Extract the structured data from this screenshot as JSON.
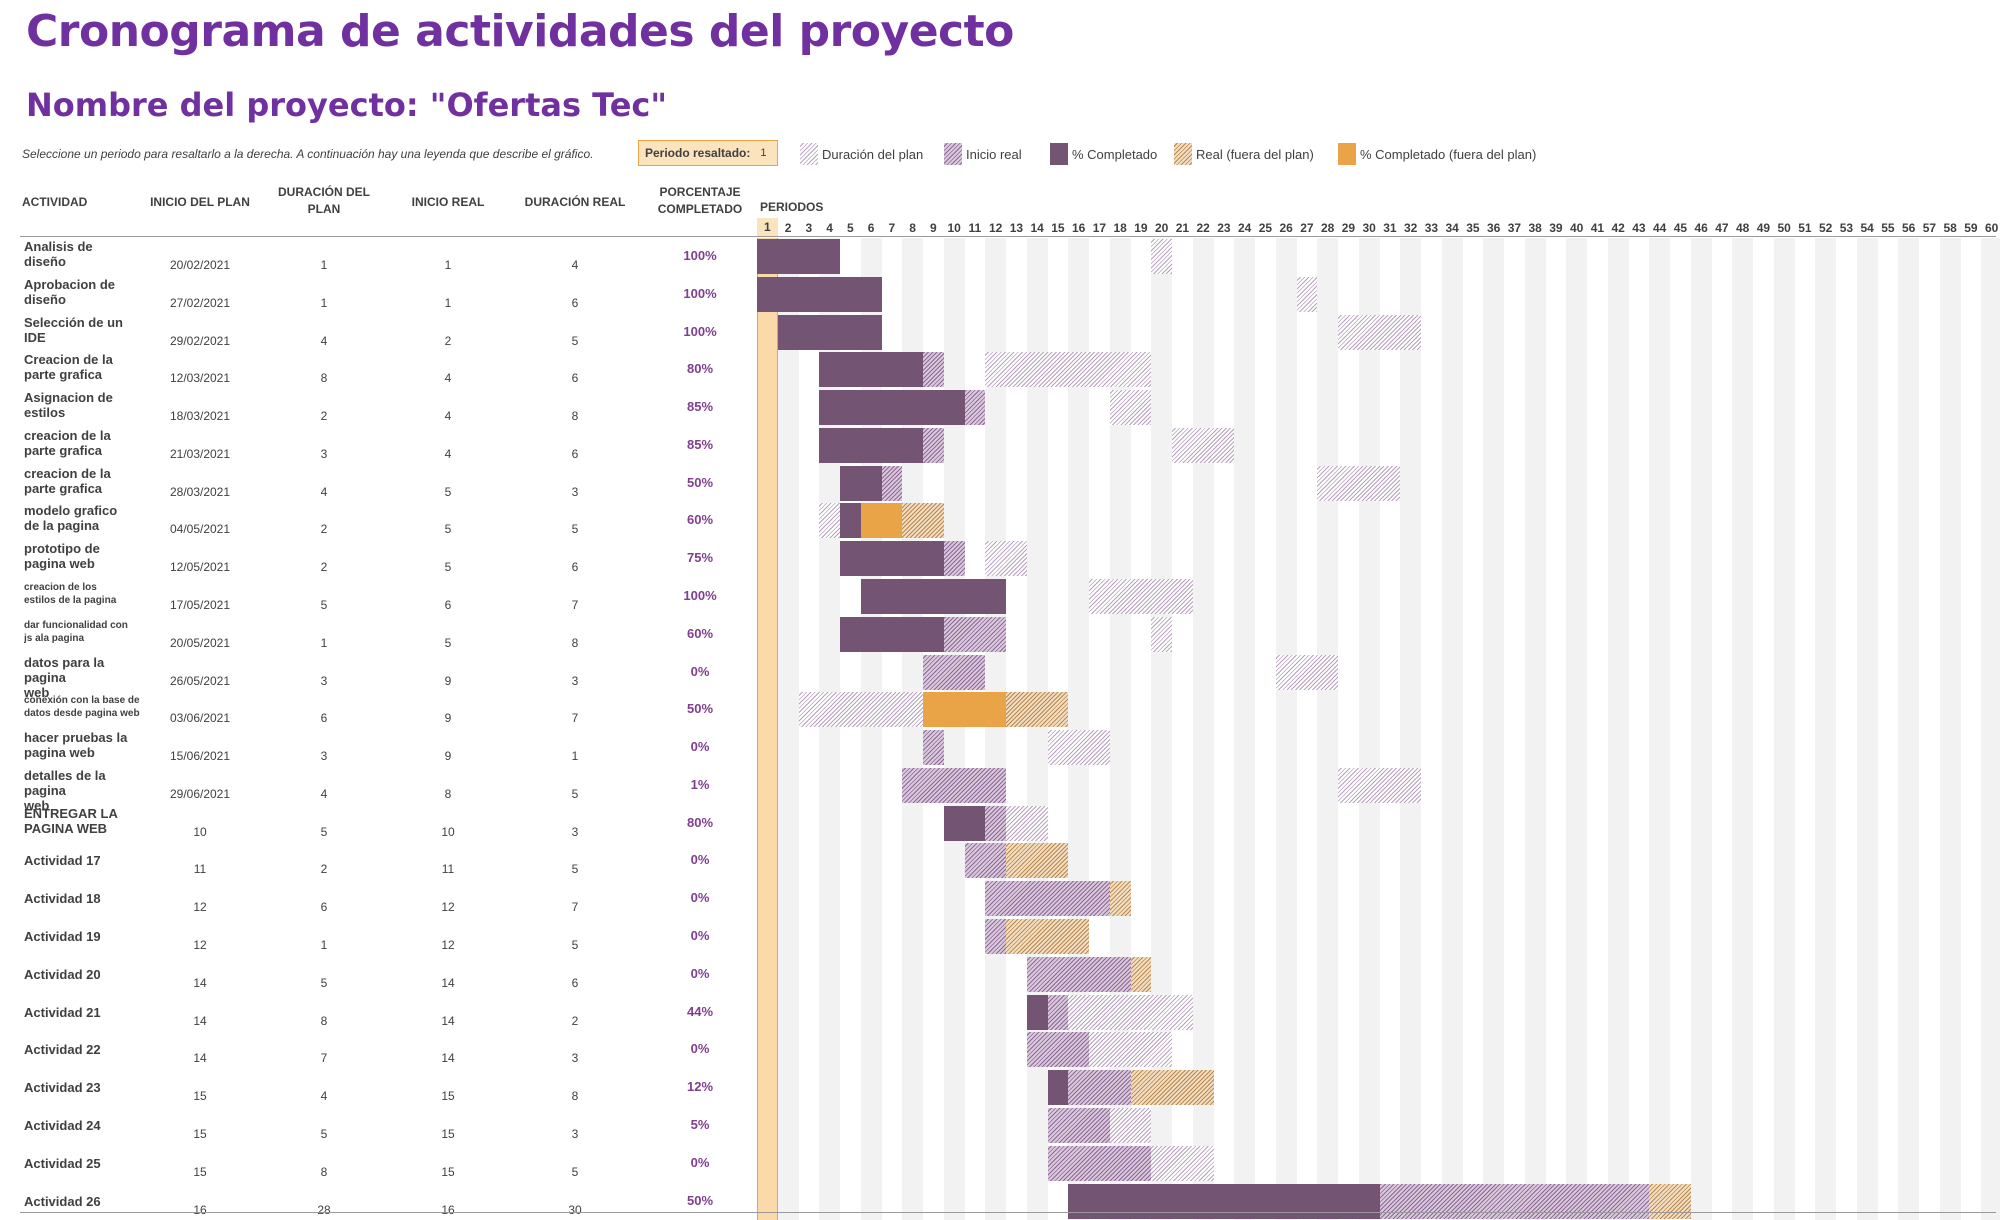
{
  "title": "Cronograma de actividades del proyecto",
  "subtitle": "Nombre del proyecto: \"Ofertas Tec\"",
  "instruction": "Seleccione un periodo para resaltarlo a la derecha.  A continuación hay una leyenda que describe el gráfico.",
  "highlight": {
    "label": "Periodo resaltado:",
    "value": "1"
  },
  "legend": {
    "plan": "Duración del plan",
    "real": "Inicio real",
    "pct": "% Completado",
    "realout": "Real (fuera del plan)",
    "pctout": "% Completado (fuera del plan)"
  },
  "headers": {
    "activity": "ACTIVIDAD",
    "plan_start": "INICIO DEL PLAN",
    "plan_duration_1": "DURACIÓN DEL",
    "plan_duration_2": "PLAN",
    "real_start": "INICIO REAL",
    "real_duration": "DURACIÓN REAL",
    "percent_1": "PORCENTAJE",
    "percent_2": "COMPLETADO",
    "periods": "PERIODOS"
  },
  "colors": {
    "accent": "#7030a0",
    "highlight": "#fbd9a8",
    "percent_complete": "#745473",
    "percent_complete_out": "#e8a446"
  },
  "periods": [
    "1",
    "2",
    "3",
    "4",
    "5",
    "6",
    "7",
    "8",
    "9",
    "10",
    "11",
    "12",
    "13",
    "14",
    "15",
    "16",
    "17",
    "18",
    "19",
    "20",
    "21",
    "22",
    "23",
    "24",
    "25",
    "26",
    "27",
    "28",
    "29",
    "30",
    "31",
    "32",
    "33",
    "34",
    "35",
    "36",
    "37",
    "38",
    "39",
    "40",
    "41",
    "42",
    "43",
    "44",
    "45",
    "46",
    "47",
    "48",
    "49",
    "50",
    "51",
    "52",
    "53",
    "54",
    "55",
    "56",
    "57",
    "58",
    "59",
    "60"
  ],
  "activities": [
    {
      "name_1": "Analisis de",
      "name_2": "diseño",
      "plan_start": "20/02/2021",
      "plan_duration": "1",
      "real_start": "1",
      "real_duration": "4",
      "percent": "100%"
    },
    {
      "name_1": "Aprobacion de",
      "name_2": "diseño",
      "plan_start": "27/02/2021",
      "plan_duration": "1",
      "real_start": "1",
      "real_duration": "6",
      "percent": "100%"
    },
    {
      "name_1": "Selección de un",
      "name_2": "IDE",
      "plan_start": "29/02/2021",
      "plan_duration": "4",
      "real_start": "2",
      "real_duration": "5",
      "percent": "100%"
    },
    {
      "name_1": "Creacion de la",
      "name_2": "parte grafica",
      "plan_start": "12/03/2021",
      "plan_duration": "8",
      "real_start": "4",
      "real_duration": "6",
      "percent": "80%"
    },
    {
      "name_1": "Asignacion de",
      "name_2": "estilos",
      "plan_start": "18/03/2021",
      "plan_duration": "2",
      "real_start": "4",
      "real_duration": "8",
      "percent": "85%"
    },
    {
      "name_1": "creacion de la",
      "name_2": "parte grafica",
      "plan_start": "21/03/2021",
      "plan_duration": "3",
      "real_start": "4",
      "real_duration": "6",
      "percent": "85%"
    },
    {
      "name_1": "creacion de la",
      "name_2": "parte grafica",
      "plan_start": "28/03/2021",
      "plan_duration": "4",
      "real_start": "5",
      "real_duration": "3",
      "percent": "50%"
    },
    {
      "name_1": "modelo grafico",
      "name_2": "de la pagina",
      "plan_start": "04/05/2021",
      "plan_duration": "2",
      "real_start": "5",
      "real_duration": "5",
      "percent": "60%"
    },
    {
      "name_1": "prototipo de",
      "name_2": "pagina web",
      "plan_start": "12/05/2021",
      "plan_duration": "2",
      "real_start": "5",
      "real_duration": "6",
      "percent": "75%"
    },
    {
      "name_1": "creacion de los",
      "name_2": "estilos de la pagina",
      "plan_start": "17/05/2021",
      "plan_duration": "5",
      "real_start": "6",
      "real_duration": "7",
      "percent": "100%"
    },
    {
      "name_1": "dar funcionalidad con",
      "name_2": "js ala pagina",
      "plan_start": "20/05/2021",
      "plan_duration": "1",
      "real_start": "5",
      "real_duration": "8",
      "percent": "60%"
    },
    {
      "name_1": "datos para la pagina",
      "name_2": "web",
      "plan_start": "26/05/2021",
      "plan_duration": "3",
      "real_start": "9",
      "real_duration": "3",
      "percent": "0%"
    },
    {
      "name_1": "conexión con la base de",
      "name_2": "datos desde pagina web",
      "plan_start": "03/06/2021",
      "plan_duration": "6",
      "real_start": "9",
      "real_duration": "7",
      "percent": "50%"
    },
    {
      "name_1": "hacer pruebas la",
      "name_2": "pagina web",
      "plan_start": "15/06/2021",
      "plan_duration": "3",
      "real_start": "9",
      "real_duration": "1",
      "percent": "0%"
    },
    {
      "name_1": "detalles de la pagina",
      "name_2": "web",
      "plan_start": "29/06/2021",
      "plan_duration": "4",
      "real_start": "8",
      "real_duration": "5",
      "percent": "1%"
    },
    {
      "name_1": "ENTREGAR LA",
      "name_2": "PAGINA WEB",
      "plan_start": "10",
      "plan_duration": "5",
      "real_start": "10",
      "real_duration": "3",
      "percent": "80%"
    },
    {
      "name_1": "Actividad 17",
      "name_2": "",
      "plan_start": "11",
      "plan_duration": "2",
      "real_start": "11",
      "real_duration": "5",
      "percent": "0%"
    },
    {
      "name_1": "Actividad 18",
      "name_2": "",
      "plan_start": "12",
      "plan_duration": "6",
      "real_start": "12",
      "real_duration": "7",
      "percent": "0%"
    },
    {
      "name_1": "Actividad 19",
      "name_2": "",
      "plan_start": "12",
      "plan_duration": "1",
      "real_start": "12",
      "real_duration": "5",
      "percent": "0%"
    },
    {
      "name_1": "Actividad 20",
      "name_2": "",
      "plan_start": "14",
      "plan_duration": "5",
      "real_start": "14",
      "real_duration": "6",
      "percent": "0%"
    },
    {
      "name_1": "Actividad 21",
      "name_2": "",
      "plan_start": "14",
      "plan_duration": "8",
      "real_start": "14",
      "real_duration": "2",
      "percent": "44%"
    },
    {
      "name_1": "Actividad 22",
      "name_2": "",
      "plan_start": "14",
      "plan_duration": "7",
      "real_start": "14",
      "real_duration": "3",
      "percent": "0%"
    },
    {
      "name_1": "Actividad 23",
      "name_2": "",
      "plan_start": "15",
      "plan_duration": "4",
      "real_start": "15",
      "real_duration": "8",
      "percent": "12%"
    },
    {
      "name_1": "Actividad 24",
      "name_2": "",
      "plan_start": "15",
      "plan_duration": "5",
      "real_start": "15",
      "real_duration": "3",
      "percent": "5%"
    },
    {
      "name_1": "Actividad 25",
      "name_2": "",
      "plan_start": "15",
      "plan_duration": "8",
      "real_start": "15",
      "real_duration": "5",
      "percent": "0%"
    },
    {
      "name_1": "Actividad 26",
      "name_2": "",
      "plan_start": "16",
      "plan_duration": "28",
      "real_start": "16",
      "real_duration": "30",
      "percent": "50%"
    }
  ]
}
